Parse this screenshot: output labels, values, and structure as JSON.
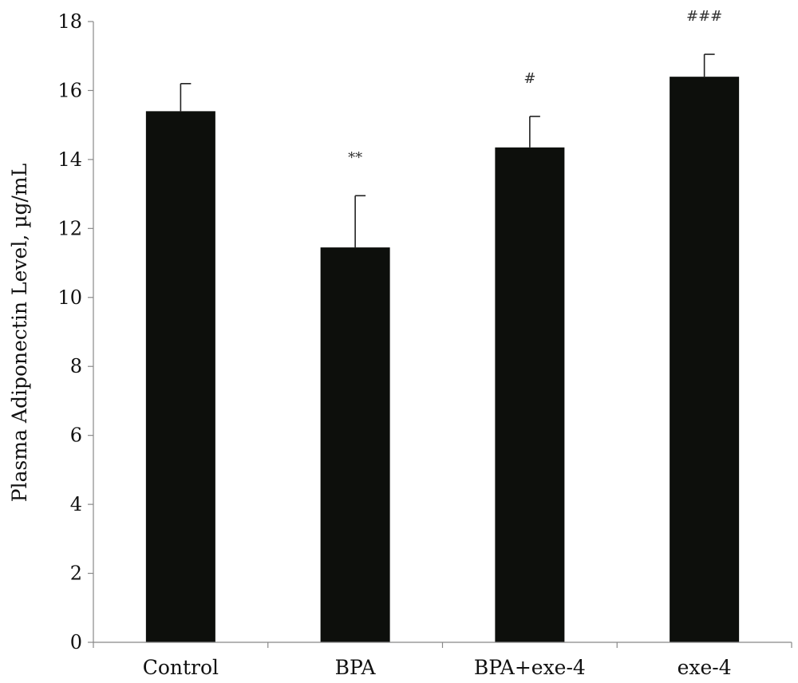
{
  "chart_data": {
    "type": "bar",
    "title": "",
    "xlabel": "",
    "ylabel": "Plasma Adiponectin Level, µg/mL",
    "ylim": [
      0,
      18
    ],
    "yticks": [
      0,
      2,
      4,
      6,
      8,
      10,
      12,
      14,
      16,
      18
    ],
    "grid": false,
    "categories": [
      "Control",
      "BPA",
      "BPA+exe-4",
      "exe-4"
    ],
    "values": [
      15.4,
      11.45,
      14.35,
      16.4
    ],
    "error_upper": [
      0.8,
      1.5,
      0.9,
      0.65
    ],
    "annotations": [
      "",
      "**",
      "#",
      "###"
    ],
    "bar_color": "#0d0f0c"
  }
}
